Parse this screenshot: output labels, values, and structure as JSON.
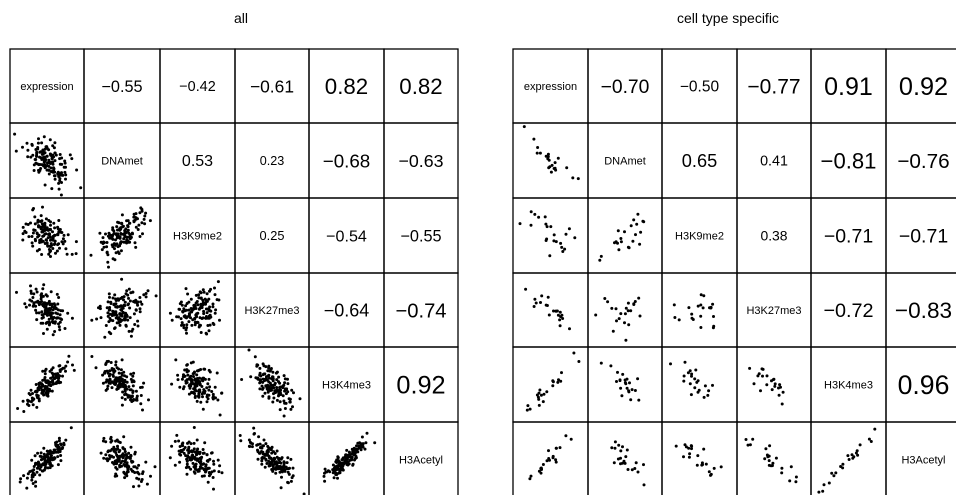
{
  "chart_data": [
    {
      "type": "scatter",
      "title": "all",
      "variables": [
        "expression",
        "DNAmet",
        "H3K9me2",
        "H3K27me3",
        "H3K4me3",
        "H3Acetyl"
      ],
      "correlations": [
        [
          "0",
          "1",
          "−0.55"
        ],
        [
          "0",
          "2",
          "−0.42"
        ],
        [
          "0",
          "3",
          "−0.61"
        ],
        [
          "0",
          "4",
          "0.82"
        ],
        [
          "0",
          "5",
          "0.82"
        ],
        [
          "1",
          "2",
          "0.53"
        ],
        [
          "1",
          "3",
          "0.23"
        ],
        [
          "1",
          "4",
          "−0.68"
        ],
        [
          "1",
          "5",
          "−0.63"
        ],
        [
          "2",
          "3",
          "0.25"
        ],
        [
          "2",
          "4",
          "−0.54"
        ],
        [
          "2",
          "5",
          "−0.55"
        ],
        [
          "3",
          "4",
          "−0.64"
        ],
        [
          "3",
          "5",
          "−0.74"
        ],
        [
          "4",
          "5",
          "0.92"
        ]
      ],
      "points_per_panel": 140,
      "grid": false
    },
    {
      "type": "scatter",
      "title": "cell type specific",
      "variables": [
        "expression",
        "DNAmet",
        "H3K9me2",
        "H3K27me3",
        "H3K4me3",
        "H3Acetyl"
      ],
      "correlations": [
        [
          "0",
          "1",
          "−0.70"
        ],
        [
          "0",
          "2",
          "−0.50"
        ],
        [
          "0",
          "3",
          "−0.77"
        ],
        [
          "0",
          "4",
          "0.91"
        ],
        [
          "0",
          "5",
          "0.92"
        ],
        [
          "1",
          "2",
          "0.65"
        ],
        [
          "1",
          "3",
          "0.41"
        ],
        [
          "1",
          "4",
          "−0.81"
        ],
        [
          "1",
          "5",
          "−0.76"
        ],
        [
          "2",
          "3",
          "0.38"
        ],
        [
          "2",
          "4",
          "−0.71"
        ],
        [
          "2",
          "5",
          "−0.71"
        ],
        [
          "3",
          "4",
          "−0.72"
        ],
        [
          "3",
          "5",
          "−0.83"
        ],
        [
          "4",
          "5",
          "0.96"
        ]
      ],
      "points_per_panel": 22,
      "grid": false
    }
  ]
}
